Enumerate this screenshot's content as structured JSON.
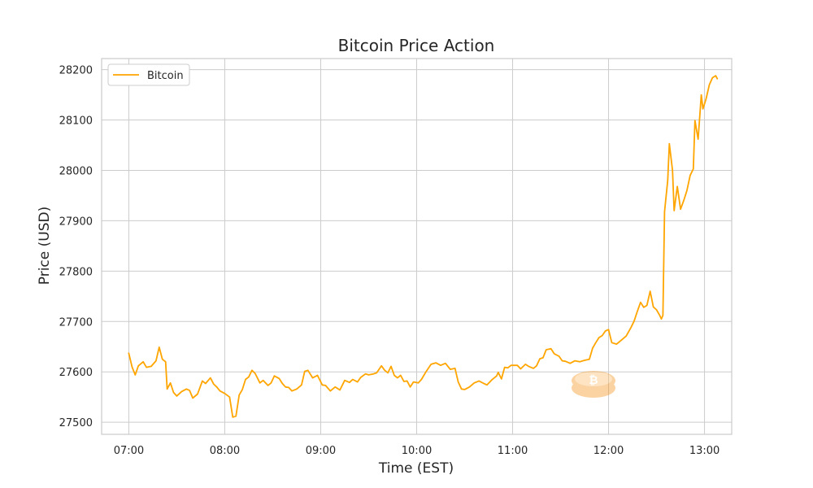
{
  "chart_data": {
    "type": "line",
    "title": "Bitcoin Price Action",
    "xlabel": "Time (EST)",
    "ylabel": "Price (USD)",
    "xlim": [
      "06:43",
      "13:17"
    ],
    "ylim": [
      27476,
      28222
    ],
    "x_ticks": [
      "07:00",
      "08:00",
      "09:00",
      "10:00",
      "11:00",
      "12:00",
      "13:00"
    ],
    "y_ticks": [
      27500,
      27600,
      27700,
      27800,
      27900,
      28000,
      28100,
      28200
    ],
    "grid": true,
    "legend": {
      "position": "top-left",
      "entries": [
        "Bitcoin"
      ]
    },
    "series": [
      {
        "name": "Bitcoin",
        "color": "#FFA500",
        "points": [
          [
            "07:00",
            27637
          ],
          [
            "07:02",
            27610
          ],
          [
            "07:04",
            27594
          ],
          [
            "07:06",
            27612
          ],
          [
            "07:09",
            27620
          ],
          [
            "07:11",
            27609
          ],
          [
            "07:14",
            27611
          ],
          [
            "07:17",
            27622
          ],
          [
            "07:19",
            27649
          ],
          [
            "07:21",
            27625
          ],
          [
            "07:23",
            27620
          ],
          [
            "07:24",
            27566
          ],
          [
            "07:26",
            27578
          ],
          [
            "07:28",
            27559
          ],
          [
            "07:30",
            27552
          ],
          [
            "07:33",
            27561
          ],
          [
            "07:36",
            27566
          ],
          [
            "07:38",
            27563
          ],
          [
            "07:40",
            27548
          ],
          [
            "07:43",
            27556
          ],
          [
            "07:46",
            27582
          ],
          [
            "07:48",
            27577
          ],
          [
            "07:51",
            27588
          ],
          [
            "07:53",
            27576
          ],
          [
            "07:55",
            27570
          ],
          [
            "07:57",
            27562
          ],
          [
            "08:00",
            27557
          ],
          [
            "08:03",
            27550
          ],
          [
            "08:05",
            27510
          ],
          [
            "08:07",
            27512
          ],
          [
            "08:09",
            27554
          ],
          [
            "08:11",
            27565
          ],
          [
            "08:13",
            27585
          ],
          [
            "08:15",
            27590
          ],
          [
            "08:17",
            27603
          ],
          [
            "08:19",
            27597
          ],
          [
            "08:22",
            27578
          ],
          [
            "08:24",
            27583
          ],
          [
            "08:27",
            27573
          ],
          [
            "08:29",
            27578
          ],
          [
            "08:31",
            27592
          ],
          [
            "08:34",
            27587
          ],
          [
            "08:36",
            27577
          ],
          [
            "08:38",
            27570
          ],
          [
            "08:40",
            27569
          ],
          [
            "08:42",
            27562
          ],
          [
            "08:45",
            27566
          ],
          [
            "08:48",
            27574
          ],
          [
            "08:50",
            27601
          ],
          [
            "08:52",
            27603
          ],
          [
            "08:55",
            27588
          ],
          [
            "08:58",
            27593
          ],
          [
            "09:01",
            27574
          ],
          [
            "09:03",
            27573
          ],
          [
            "09:06",
            27562
          ],
          [
            "09:09",
            27570
          ],
          [
            "09:12",
            27564
          ],
          [
            "09:15",
            27583
          ],
          [
            "09:18",
            27579
          ],
          [
            "09:20",
            27585
          ],
          [
            "09:23",
            27580
          ],
          [
            "09:25",
            27589
          ],
          [
            "09:28",
            27596
          ],
          [
            "09:30",
            27594
          ],
          [
            "09:33",
            27596
          ],
          [
            "09:35",
            27598
          ],
          [
            "09:38",
            27612
          ],
          [
            "09:40",
            27603
          ],
          [
            "09:42",
            27598
          ],
          [
            "09:44",
            27611
          ],
          [
            "09:46",
            27593
          ],
          [
            "09:48",
            27588
          ],
          [
            "09:50",
            27593
          ],
          [
            "09:52",
            27581
          ],
          [
            "09:54",
            27582
          ],
          [
            "09:56",
            27570
          ],
          [
            "09:58",
            27580
          ],
          [
            "10:01",
            27578
          ],
          [
            "10:03",
            27585
          ],
          [
            "10:06",
            27601
          ],
          [
            "10:09",
            27615
          ],
          [
            "10:12",
            27618
          ],
          [
            "10:15",
            27613
          ],
          [
            "10:18",
            27617
          ],
          [
            "10:21",
            27605
          ],
          [
            "10:24",
            27607
          ],
          [
            "10:26",
            27580
          ],
          [
            "10:28",
            27566
          ],
          [
            "10:30",
            27565
          ],
          [
            "10:33",
            27570
          ],
          [
            "10:36",
            27578
          ],
          [
            "10:39",
            27582
          ],
          [
            "10:42",
            27577
          ],
          [
            "10:44",
            27574
          ],
          [
            "10:47",
            27584
          ],
          [
            "10:50",
            27592
          ],
          [
            "10:51",
            27599
          ],
          [
            "10:53",
            27586
          ],
          [
            "10:55",
            27609
          ],
          [
            "10:57",
            27608
          ],
          [
            "10:59",
            27613
          ],
          [
            "11:03",
            27613
          ],
          [
            "11:05",
            27606
          ],
          [
            "11:08",
            27615
          ],
          [
            "11:10",
            27611
          ],
          [
            "11:13",
            27607
          ],
          [
            "11:15",
            27612
          ],
          [
            "11:17",
            27626
          ],
          [
            "11:19",
            27628
          ],
          [
            "11:21",
            27644
          ],
          [
            "11:24",
            27646
          ],
          [
            "11:26",
            27636
          ],
          [
            "11:29",
            27631
          ],
          [
            "11:31",
            27622
          ],
          [
            "11:33",
            27621
          ],
          [
            "11:36",
            27617
          ],
          [
            "11:39",
            27622
          ],
          [
            "11:42",
            27620
          ],
          [
            "11:45",
            27623
          ],
          [
            "11:48",
            27625
          ],
          [
            "11:50",
            27647
          ],
          [
            "11:52",
            27658
          ],
          [
            "11:54",
            27668
          ],
          [
            "11:56",
            27672
          ],
          [
            "11:58",
            27681
          ],
          [
            "12:00",
            27684
          ],
          [
            "12:02",
            27658
          ],
          [
            "12:05",
            27655
          ],
          [
            "12:08",
            27663
          ],
          [
            "12:11",
            27671
          ],
          [
            "12:14",
            27688
          ],
          [
            "12:16",
            27701
          ],
          [
            "12:18",
            27720
          ],
          [
            "12:20",
            27738
          ],
          [
            "12:22",
            27728
          ],
          [
            "12:24",
            27732
          ],
          [
            "12:26",
            27760
          ],
          [
            "12:28",
            27729
          ],
          [
            "12:30",
            27723
          ],
          [
            "12:32",
            27712
          ],
          [
            "12:33",
            27705
          ],
          [
            "12:34",
            27712
          ],
          [
            "12:35",
            27918
          ],
          [
            "12:37",
            27980
          ],
          [
            "12:38",
            28053
          ],
          [
            "12:40",
            28000
          ],
          [
            "12:41",
            27920
          ],
          [
            "12:43",
            27968
          ],
          [
            "12:45",
            27923
          ],
          [
            "12:47",
            27940
          ],
          [
            "12:49",
            27960
          ],
          [
            "12:51",
            27990
          ],
          [
            "12:53",
            28003
          ],
          [
            "12:54",
            28099
          ],
          [
            "12:56",
            28062
          ],
          [
            "12:58",
            28150
          ],
          [
            "12:59",
            28122
          ],
          [
            "13:01",
            28142
          ],
          [
            "13:03",
            28170
          ],
          [
            "13:05",
            28184
          ],
          [
            "13:07",
            28188
          ],
          [
            "13:08",
            28182
          ]
        ]
      }
    ]
  },
  "colors": {
    "line": "#FFA500",
    "grid": "#cccccc",
    "frame": "#cccccc",
    "text": "#262626",
    "background": "#ffffff"
  },
  "logo": {
    "type": "bitcoin-coin-logo",
    "color": "#F7931A"
  }
}
